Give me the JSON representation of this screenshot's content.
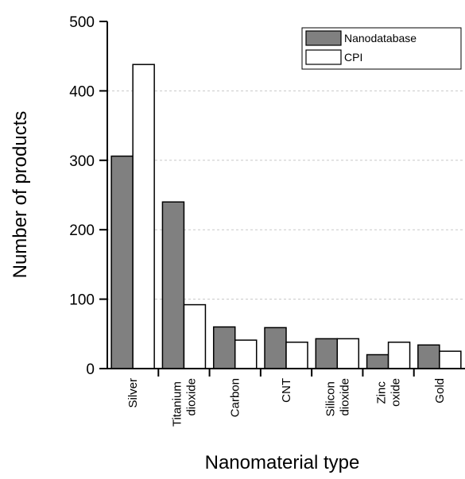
{
  "chart_data": {
    "type": "bar",
    "x_label": "Nanomaterial type",
    "y_label": "Number of products",
    "categories": [
      "Silver",
      "Titanium dioxide",
      "Carbon",
      "CNT",
      "Silicon dioxide",
      "Zinc oxide",
      "Gold"
    ],
    "series": [
      {
        "name": "Nanodatabase",
        "color": "#808080",
        "values": [
          306,
          240,
          60,
          59,
          43,
          20,
          34
        ]
      },
      {
        "name": "CPI",
        "color": "#ffffff",
        "values": [
          438,
          92,
          41,
          38,
          43,
          38,
          25
        ]
      }
    ],
    "ylim": [
      0,
      500
    ],
    "yticks": [
      0,
      100,
      200,
      300,
      400,
      500
    ],
    "grid": true,
    "legend": "upper right"
  }
}
